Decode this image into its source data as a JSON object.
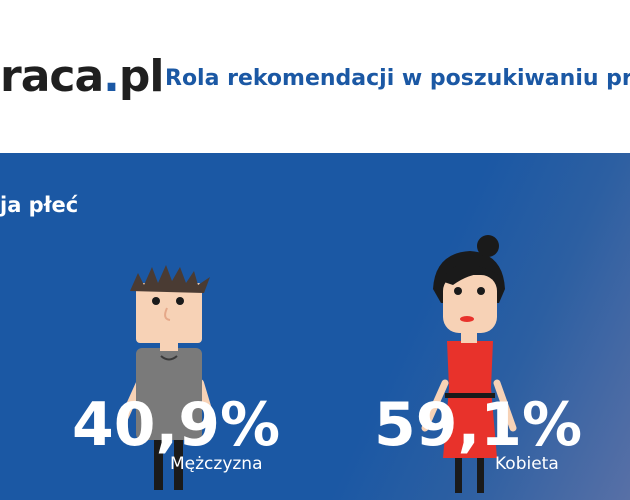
{
  "header": {
    "logo_main": "raca",
    "logo_dot": ".",
    "logo_tld": "pl",
    "title": "Rola rekomendacji w poszukiwaniu pra"
  },
  "panel": {
    "section_title": "ja płeć",
    "stats": [
      {
        "value": "40,9%",
        "label": "Mężczyzna"
      },
      {
        "value": "59,1%",
        "label": "Kobieta"
      }
    ]
  },
  "colors": {
    "brand_blue": "#1b58a4",
    "white": "#ffffff",
    "dress_red": "#e8322b",
    "shirt_gray": "#7a7a7a",
    "hair_dark": "#1a1a1a",
    "man_hair_brown": "#4a3b33",
    "skin": "#f7d2b6"
  }
}
